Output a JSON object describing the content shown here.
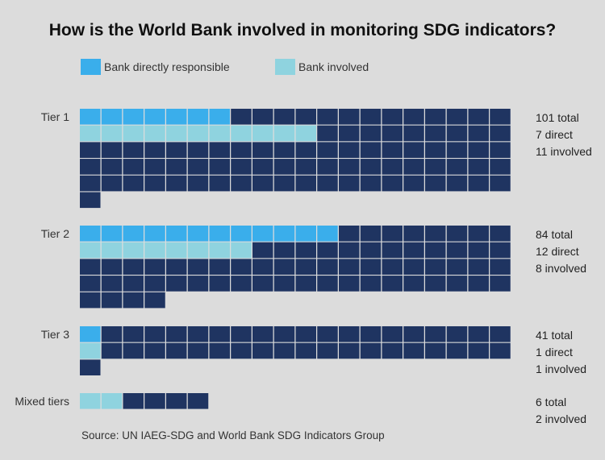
{
  "title": "How is the World Bank involved in monitoring SDG indicators?",
  "legend": [
    {
      "label": "Bank directly responsible",
      "color": "#3aaeeb"
    },
    {
      "label": "Bank involved",
      "color": "#8fd3df"
    }
  ],
  "colors": {
    "other": "#1f3461",
    "background": "#dcdcdc"
  },
  "source": "Source: UN IAEG-SDG and World Bank SDG Indicators Group",
  "chart_data": {
    "type": "waffle",
    "title": "How is the World Bank involved in monitoring SDG indicators?",
    "units_per_row": 20,
    "series_names": [
      "Bank directly responsible",
      "Bank involved"
    ],
    "groups": [
      {
        "label": "Tier 1",
        "total": 101,
        "direct": 7,
        "involved": 11,
        "stats": [
          "101 total",
          "7 direct",
          "11 involved"
        ]
      },
      {
        "label": "Tier 2",
        "total": 84,
        "direct": 12,
        "involved": 8,
        "stats": [
          "84 total",
          "12 direct",
          "8 involved"
        ]
      },
      {
        "label": "Tier 3",
        "total": 41,
        "direct": 1,
        "involved": 1,
        "stats": [
          "41 total",
          "1 direct",
          "1 involved"
        ]
      },
      {
        "label": "Mixed tiers",
        "total": 6,
        "direct": 0,
        "involved": 2,
        "stats": [
          "6 total",
          "2 involved"
        ]
      }
    ]
  }
}
